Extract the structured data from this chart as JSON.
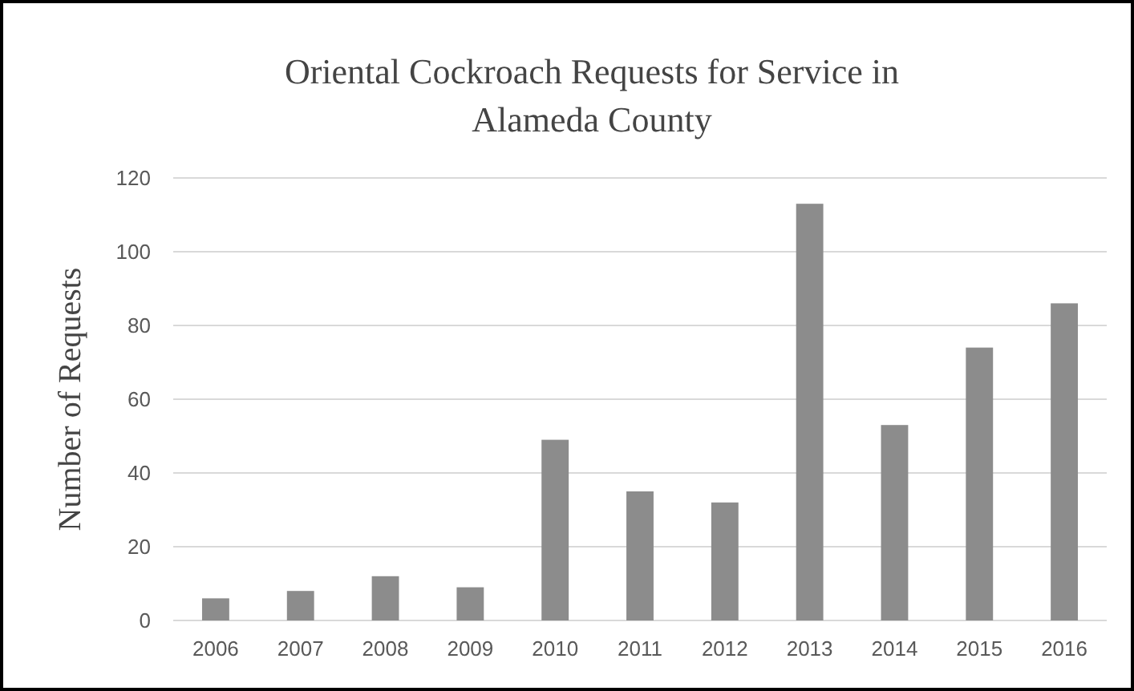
{
  "chart_data": {
    "type": "bar",
    "title": "Oriental Cockroach Requests for Service in Alameda County",
    "ylabel": "Number of Requests",
    "categories": [
      "2006",
      "2007",
      "2008",
      "2009",
      "2010",
      "2011",
      "2012",
      "2013",
      "2014",
      "2015",
      "2016"
    ],
    "values": [
      6,
      8,
      12,
      9,
      49,
      35,
      32,
      113,
      53,
      74,
      86
    ],
    "color": "#8c8c8c",
    "ylim": [
      0,
      120
    ],
    "yticks": [
      0,
      20,
      40,
      60,
      80,
      100,
      120
    ],
    "grid": "y"
  }
}
